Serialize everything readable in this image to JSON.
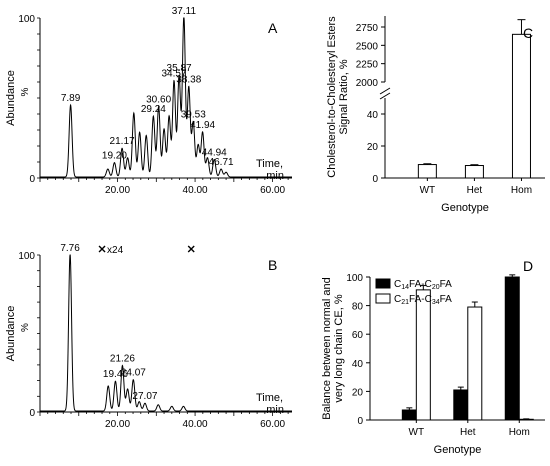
{
  "chart_data": [
    {
      "panel": "A",
      "type": "line",
      "ylabel": "Abundance",
      "yunit": "%",
      "xlabel_line1": "Time,",
      "xlabel_line2": "min",
      "xlim": [
        0,
        65
      ],
      "ylim": [
        0,
        100
      ],
      "xticks": [
        20,
        40,
        60
      ],
      "xtick_labels": [
        "20.00",
        "40.00",
        "60.00"
      ],
      "yticks": [
        0,
        100
      ],
      "ytick_labels": [
        "0",
        "100"
      ],
      "peaks": [
        {
          "x": 7.89,
          "y": 45,
          "label": "7.89"
        },
        {
          "x": 17.5,
          "y": 5
        },
        {
          "x": 19.2,
          "y": 9,
          "label": "19.20"
        },
        {
          "x": 21.17,
          "y": 18,
          "label": "21.17"
        },
        {
          "x": 22.6,
          "y": 12
        },
        {
          "x": 24.2,
          "y": 40
        },
        {
          "x": 25.7,
          "y": 28
        },
        {
          "x": 27.4,
          "y": 26
        },
        {
          "x": 29.24,
          "y": 38,
          "label": "29.24"
        },
        {
          "x": 30.6,
          "y": 44,
          "label": "30.60"
        },
        {
          "x": 32.0,
          "y": 30
        },
        {
          "x": 33.3,
          "y": 38
        },
        {
          "x": 34.57,
          "y": 60,
          "label": "34.57"
        },
        {
          "x": 35.87,
          "y": 63,
          "label": "35.87"
        },
        {
          "x": 37.11,
          "y": 100,
          "label": "37.11"
        },
        {
          "x": 38.38,
          "y": 56,
          "label": "38.38"
        },
        {
          "x": 39.53,
          "y": 34,
          "label": "39.53"
        },
        {
          "x": 40.8,
          "y": 20
        },
        {
          "x": 41.94,
          "y": 28,
          "label": "41.94"
        },
        {
          "x": 43.2,
          "y": 12
        },
        {
          "x": 44.94,
          "y": 11,
          "label": "44.94"
        },
        {
          "x": 46.71,
          "y": 5,
          "label": "46.71"
        },
        {
          "x": 48.0,
          "y": 3
        }
      ]
    },
    {
      "panel": "C",
      "type": "bar",
      "ylabel_line1": "Cholesterol-to-Cholesteryl Esters",
      "ylabel_line2": "Signal Ratio, %",
      "xlabel": "Genotype",
      "categories": [
        "WT",
        "Het",
        "Hom"
      ],
      "values": [
        8.4,
        7.8,
        2650
      ],
      "errors": [
        0.5,
        0.5,
        200
      ],
      "broken_axis": {
        "lower": [
          0,
          50
        ],
        "upper": [
          2000,
          2900
        ]
      },
      "yticks_lower": [
        0,
        20,
        40
      ],
      "yticks_upper": [
        2000,
        2250,
        2500,
        2750
      ],
      "ytick_labels_lower": [
        "0",
        "20",
        "40"
      ],
      "ytick_labels_upper": [
        "2000",
        "2250",
        "2500",
        "2750"
      ],
      "bar_color": "#ffffff"
    },
    {
      "panel": "B",
      "type": "line",
      "ylabel": "Abundance",
      "yunit": "%",
      "xlabel_line1": "Time,",
      "xlabel_line2": "min",
      "annotation": "x24",
      "annotation_range": [
        16,
        39
      ],
      "xlim": [
        0,
        65
      ],
      "ylim": [
        0,
        100
      ],
      "xticks": [
        20,
        40,
        60
      ],
      "xtick_labels": [
        "20.00",
        "40.00",
        "60.00"
      ],
      "yticks": [
        0,
        100
      ],
      "ytick_labels": [
        "0",
        "100"
      ],
      "peaks": [
        {
          "x": 7.76,
          "y": 100,
          "label": "7.76"
        },
        {
          "x": 17.6,
          "y": 16
        },
        {
          "x": 19.46,
          "y": 19,
          "label": "19.46"
        },
        {
          "x": 21.26,
          "y": 29,
          "label": "21.26"
        },
        {
          "x": 22.6,
          "y": 14
        },
        {
          "x": 24.07,
          "y": 20,
          "label": "24.07"
        },
        {
          "x": 25.6,
          "y": 6
        },
        {
          "x": 27.07,
          "y": 5,
          "label": "27.07"
        },
        {
          "x": 30.5,
          "y": 4
        },
        {
          "x": 34.0,
          "y": 3
        },
        {
          "x": 37.0,
          "y": 3
        }
      ]
    },
    {
      "panel": "D",
      "type": "bar",
      "ylabel_line1": "Balance between normal and",
      "ylabel_line2": "very long chain CE, %",
      "xlabel": "Genotype",
      "categories": [
        "WT",
        "Het",
        "Hom"
      ],
      "ylim": [
        0,
        100
      ],
      "yticks": [
        0,
        20,
        40,
        60,
        80,
        100
      ],
      "ytick_labels": [
        "0",
        "20",
        "40",
        "60",
        "80",
        "100"
      ],
      "legend_position": "top-left",
      "series": [
        {
          "name": "C14FA-C20FA",
          "legend_parts": [
            "C",
            "14",
            "FA-C",
            "20",
            "FA"
          ],
          "color": "#000000",
          "values": [
            7,
            21,
            100
          ],
          "errors": [
            1.5,
            2,
            1.5
          ]
        },
        {
          "name": "C21FA-C34FA",
          "legend_parts": [
            "C",
            "21",
            "FA-C",
            "34",
            "FA"
          ],
          "color": "#ffffff",
          "values": [
            91,
            79,
            0.5
          ],
          "errors": [
            3,
            3.5,
            0.3
          ]
        }
      ]
    }
  ]
}
